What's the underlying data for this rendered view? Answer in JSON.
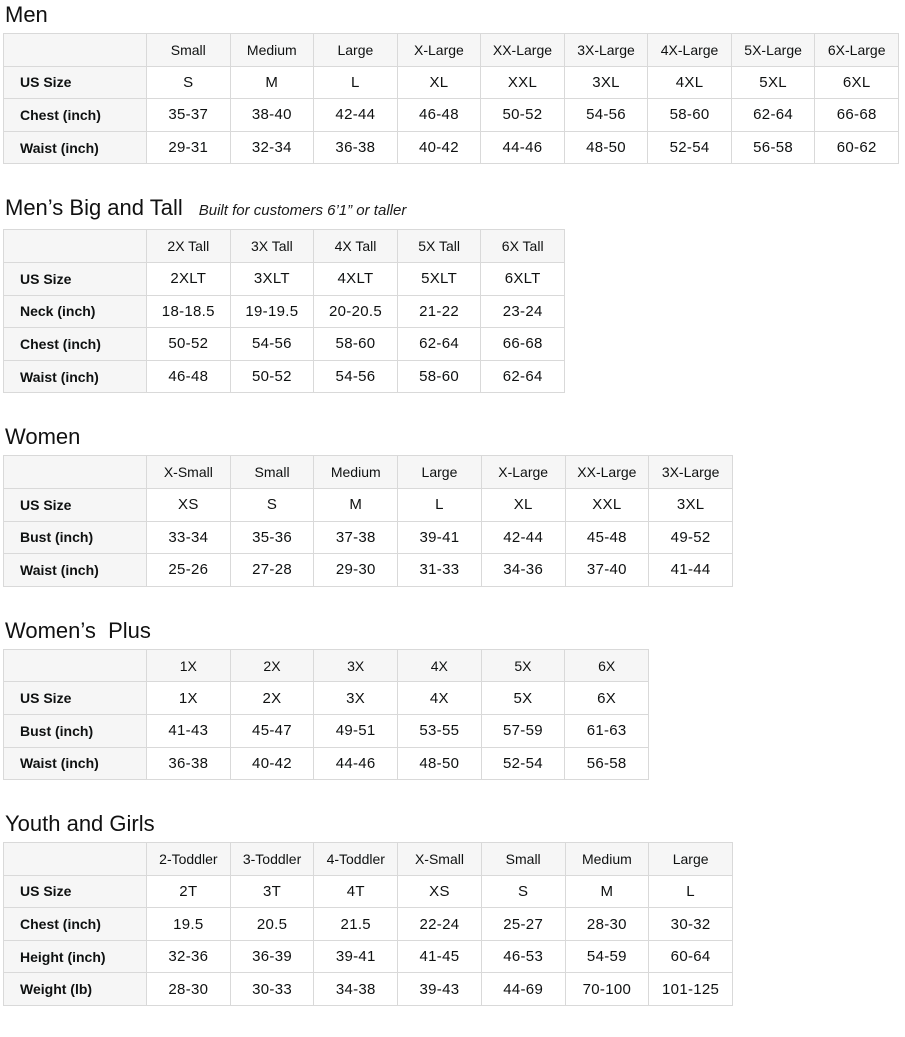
{
  "theme": {
    "page_bg": "#ffffff",
    "text": "#0f1111",
    "border": "#d9d9d9",
    "header_bg": "#f6f6f6"
  },
  "sections": [
    {
      "title": "Men",
      "subtitle": "",
      "columns": [
        "Small",
        "Medium",
        "Large",
        "X-Large",
        "XX-Large",
        "3X-Large",
        "4X-Large",
        "5X-Large",
        "6X-Large"
      ],
      "rows": [
        {
          "label": "US Size",
          "values": [
            "S",
            "M",
            "L",
            "XL",
            "XXL",
            "3XL",
            "4XL",
            "5XL",
            "6XL"
          ]
        },
        {
          "label": "Chest (inch)",
          "values": [
            "35-37",
            "38-40",
            "42-44",
            "46-48",
            "50-52",
            "54-56",
            "58-60",
            "62-64",
            "66-68"
          ]
        },
        {
          "label": "Waist (inch)",
          "values": [
            "29-31",
            "32-34",
            "36-38",
            "40-42",
            "44-46",
            "48-50",
            "52-54",
            "56-58",
            "60-62"
          ]
        }
      ]
    },
    {
      "title": "Men’s Big and Tall",
      "subtitle": "Built for customers 6’1” or taller",
      "columns": [
        "2X Tall",
        "3X Tall",
        "4X Tall",
        "5X Tall",
        "6X Tall"
      ],
      "rows": [
        {
          "label": "US Size",
          "values": [
            "2XLT",
            "3XLT",
            "4XLT",
            "5XLT",
            "6XLT"
          ]
        },
        {
          "label": "Neck (inch)",
          "values": [
            "18-18.5",
            "19-19.5",
            "20-20.5",
            "21-22",
            "23-24"
          ]
        },
        {
          "label": "Chest (inch)",
          "values": [
            "50-52",
            "54-56",
            "58-60",
            "62-64",
            "66-68"
          ]
        },
        {
          "label": "Waist (inch)",
          "values": [
            "46-48",
            "50-52",
            "54-56",
            "58-60",
            "62-64"
          ]
        }
      ]
    },
    {
      "title": "Women",
      "subtitle": "",
      "columns": [
        "X-Small",
        "Small",
        "Medium",
        "Large",
        "X-Large",
        "XX-Large",
        "3X-Large"
      ],
      "rows": [
        {
          "label": "US Size",
          "values": [
            "XS",
            "S",
            "M",
            "L",
            "XL",
            "XXL",
            "3XL"
          ]
        },
        {
          "label": "Bust (inch)",
          "values": [
            "33-34",
            "35-36",
            "37-38",
            "39-41",
            "42-44",
            "45-48",
            "49-52"
          ]
        },
        {
          "label": "Waist (inch)",
          "values": [
            "25-26",
            "27-28",
            "29-30",
            "31-33",
            "34-36",
            "37-40",
            "41-44"
          ]
        }
      ]
    },
    {
      "title": "Women’s  Plus",
      "subtitle": "",
      "columns": [
        "1X",
        "2X",
        "3X",
        "4X",
        "5X",
        "6X"
      ],
      "rows": [
        {
          "label": "US Size",
          "values": [
            "1X",
            "2X",
            "3X",
            "4X",
            "5X",
            "6X"
          ]
        },
        {
          "label": "Bust (inch)",
          "values": [
            "41-43",
            "45-47",
            "49-51",
            "53-55",
            "57-59",
            "61-63"
          ]
        },
        {
          "label": "Waist (inch)",
          "values": [
            "36-38",
            "40-42",
            "44-46",
            "48-50",
            "52-54",
            "56-58"
          ]
        }
      ]
    },
    {
      "title": "Youth and Girls",
      "subtitle": "",
      "columns": [
        "2-Toddler",
        "3-Toddler",
        "4-Toddler",
        "X-Small",
        "Small",
        "Medium",
        "Large"
      ],
      "rows": [
        {
          "label": "US Size",
          "values": [
            "2T",
            "3T",
            "4T",
            "XS",
            "S",
            "M",
            "L"
          ]
        },
        {
          "label": "Chest (inch)",
          "values": [
            "19.5",
            "20.5",
            "21.5",
            "22-24",
            "25-27",
            "28-30",
            "30-32"
          ]
        },
        {
          "label": "Height (inch)",
          "values": [
            "32-36",
            "36-39",
            "39-41",
            "41-45",
            "46-53",
            "54-59",
            "60-64"
          ]
        },
        {
          "label": "Weight (lb)",
          "values": [
            "28-30",
            "30-33",
            "34-38",
            "39-43",
            "44-69",
            "70-100",
            "101-125"
          ]
        }
      ]
    }
  ]
}
